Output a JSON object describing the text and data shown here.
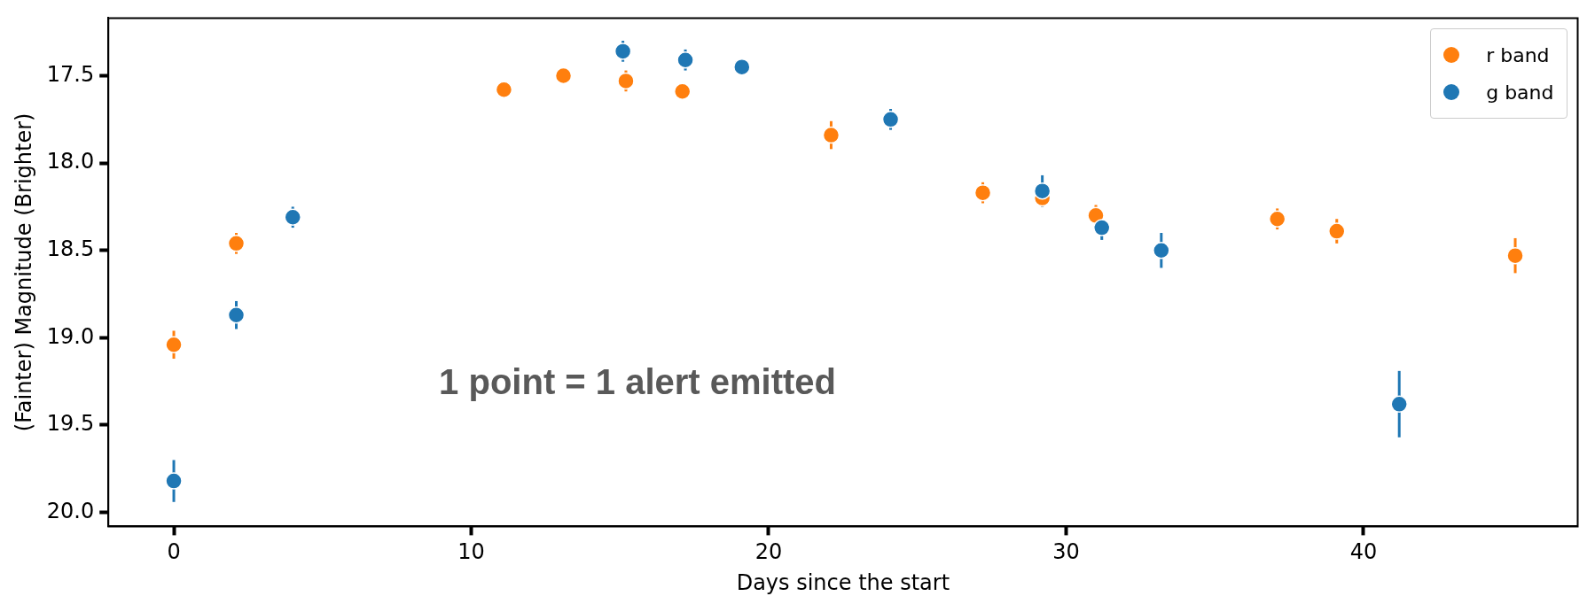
{
  "chart_data": {
    "type": "scatter",
    "xlabel": "Days since the start",
    "ylabel": "(Fainter) Magnitude (Brighter)",
    "annotations": [
      "1 point = 1 alert emitted"
    ],
    "xlim": [
      -2.2,
      47.2
    ],
    "ylim": [
      20.08,
      17.17
    ],
    "xticks": [
      0,
      10,
      20,
      30,
      40
    ],
    "yticks": [
      17.5,
      {
        "value": 18,
        "label": "18.0"
      },
      18.5,
      {
        "value": 19,
        "label": "19.0"
      },
      19.5,
      {
        "value": 20,
        "label": "20.0"
      }
    ],
    "grid": false,
    "legend": "top right",
    "marker": "circle",
    "series": [
      {
        "name": "r band",
        "color": "#ff7f0e",
        "x": [
          0,
          2.1,
          11.1,
          13.1,
          15.2,
          17.1,
          22.1,
          27.2,
          29.2,
          31.0,
          37.1,
          39.1,
          45.1
        ],
        "values": [
          19.04,
          18.46,
          17.58,
          17.5,
          17.53,
          17.59,
          17.84,
          18.17,
          18.2,
          18.3,
          18.32,
          18.39,
          18.53
        ],
        "errors": [
          0.08,
          0.06,
          0.03,
          0.02,
          0.06,
          0.02,
          0.08,
          0.06,
          0.05,
          0.06,
          0.06,
          0.07,
          0.1
        ]
      },
      {
        "name": "g band",
        "color": "#1f77b4",
        "x": [
          0,
          2.1,
          4.0,
          15.1,
          17.2,
          19.1,
          24.1,
          29.2,
          31.2,
          33.2,
          41.2
        ],
        "values": [
          19.82,
          18.87,
          18.31,
          17.36,
          17.41,
          17.45,
          17.75,
          18.16,
          18.37,
          18.5,
          19.38
        ],
        "errors": [
          0.12,
          0.08,
          0.06,
          0.06,
          0.06,
          0.02,
          0.06,
          0.09,
          0.07,
          0.1,
          0.19
        ]
      }
    ]
  }
}
